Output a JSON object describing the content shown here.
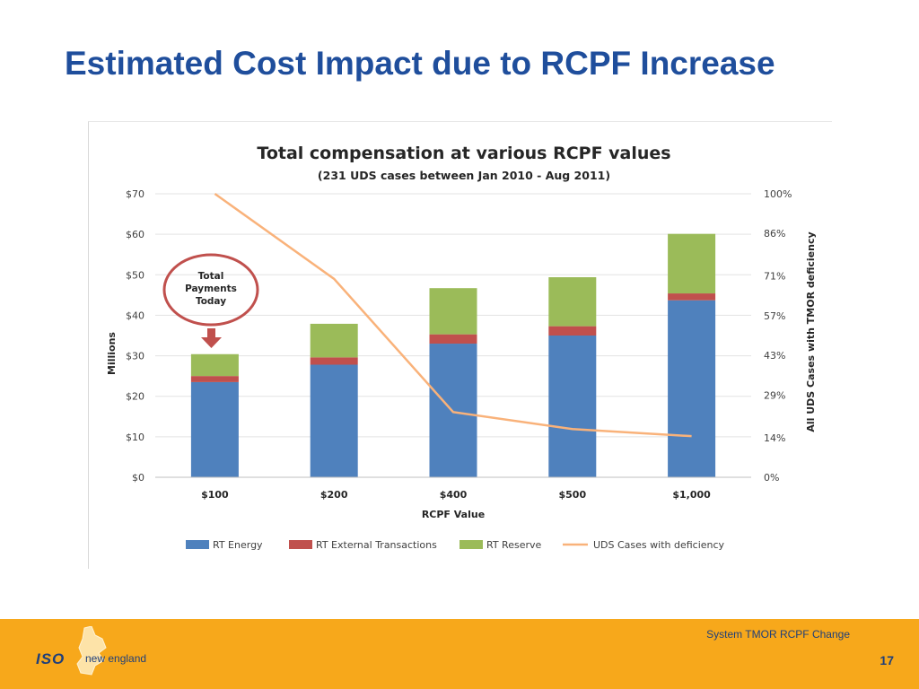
{
  "slide": {
    "title": "Estimated Cost Impact due to RCPF Increase",
    "footer_caption": "System TMOR RCPF Change",
    "page_number": "17",
    "logo_iso": "ISO",
    "logo_name": "new england"
  },
  "callout": {
    "lines": [
      "Total",
      "Payments",
      "Today"
    ],
    "color": "#c0504d"
  },
  "chart_data": {
    "type": "bar",
    "stacked": true,
    "title": "Total compensation at various RCPF values",
    "subtitle": "(231 UDS cases between Jan 2010 - Aug 2011)",
    "xlabel": "RCPF Value",
    "ylabel": "Millions",
    "y2label": "All UDS Cases with TMOR deficiency",
    "categories": [
      "$100",
      "$200",
      "$400",
      "$500",
      "$1,000"
    ],
    "ylim": [
      0,
      70
    ],
    "y_ticks": [
      0,
      10,
      20,
      30,
      40,
      50,
      60,
      70
    ],
    "y_tick_labels": [
      "$0",
      "$10",
      "$20",
      "$30",
      "$40",
      "$50",
      "$60",
      "$70"
    ],
    "y2_ticks": [
      0,
      0.14,
      0.29,
      0.43,
      0.57,
      0.71,
      0.86,
      1.0
    ],
    "y2_tick_labels": [
      "0%",
      "14%",
      "29%",
      "43%",
      "57%",
      "71%",
      "86%",
      "100%"
    ],
    "grid": true,
    "legend_position": "bottom",
    "series": [
      {
        "name": "RT Energy",
        "type": "bar",
        "color": "#4f81bd",
        "values": [
          23.5,
          27.8,
          33.0,
          35.0,
          43.7
        ]
      },
      {
        "name": "RT External Transactions",
        "type": "bar",
        "color": "#c0504d",
        "values": [
          1.5,
          1.8,
          2.3,
          2.3,
          1.7
        ]
      },
      {
        "name": "RT Reserve",
        "type": "bar",
        "color": "#9bbb59",
        "values": [
          5.4,
          8.3,
          11.4,
          12.1,
          14.7
        ]
      },
      {
        "name": "UDS Cases with deficiency",
        "type": "line",
        "axis": "right",
        "color": "#f9b27a",
        "values": [
          1.0,
          0.7,
          0.23,
          0.17,
          0.145
        ]
      }
    ]
  }
}
